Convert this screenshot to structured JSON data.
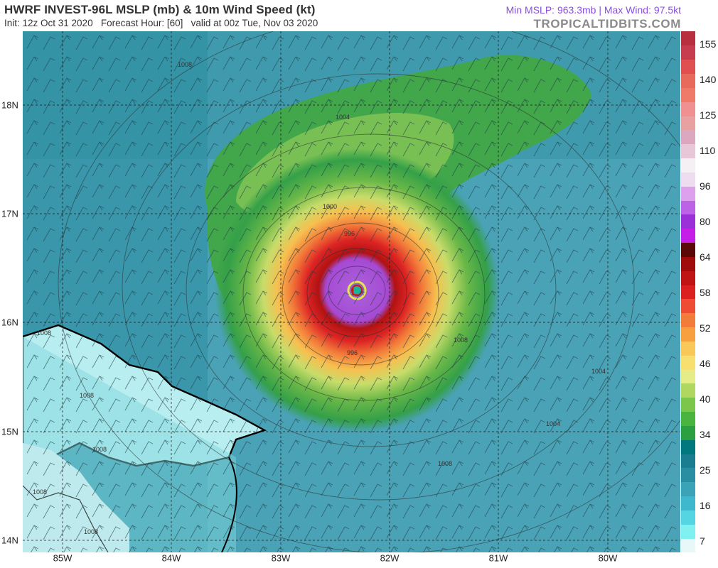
{
  "header": {
    "title": "HWRF INVEST-96L MSLP (mb) & 10m Wind Speed (kt)",
    "init_line": "Init: 12z Oct 31 2020   Forecast Hour: [60]   valid at 00z Tue, Nov 03 2020",
    "stats": "Min MSLP: 963.3mb | Max Wind: 97.5kt",
    "brand": "TROPICALTIDBITS.COM"
  },
  "map": {
    "lat_labels": [
      "18N",
      "17N",
      "16N",
      "15N",
      "14N"
    ],
    "lon_labels": [
      "85W",
      "84W",
      "83W",
      "82W",
      "81W",
      "80W"
    ],
    "isobar_labels": [
      "1008",
      "1004",
      "1000",
      "996",
      "1008",
      "1004",
      "1004",
      "1008",
      "1008",
      "1008",
      "1008",
      "1008",
      "1008",
      "996"
    ],
    "low_marker": "L",
    "colors": {
      "ocean": "#4a9fb4",
      "land": "#ffffff",
      "coast": "#000000"
    }
  },
  "colorbar": {
    "labels": [
      "155",
      "140",
      "125",
      "110",
      "96",
      "80",
      "64",
      "58",
      "52",
      "46",
      "40",
      "34",
      "25",
      "16",
      "7"
    ],
    "colors": [
      "#e8f8f8",
      "#80f0f0",
      "#55d4e2",
      "#3eb8cc",
      "#3aa3b8",
      "#2a8ea2",
      "#1a7e90",
      "#00787e",
      "#2ca040",
      "#4ab53e",
      "#7cc64c",
      "#b0d860",
      "#e6ec88",
      "#f8e070",
      "#f8c858",
      "#f8a040",
      "#f47c3a",
      "#ee4c34",
      "#dc2020",
      "#c01414",
      "#a00c0c",
      "#5a0808",
      "#c41ee8",
      "#9c30d8",
      "#bc62e6",
      "#dca0ec",
      "#eedcf0",
      "#f4f0f4",
      "#e8c8d8",
      "#dca8c0",
      "#e8a0a0",
      "#f09090",
      "#f07a6a",
      "#e86a5a",
      "#e05050",
      "#c83c50",
      "#b83040"
    ]
  }
}
